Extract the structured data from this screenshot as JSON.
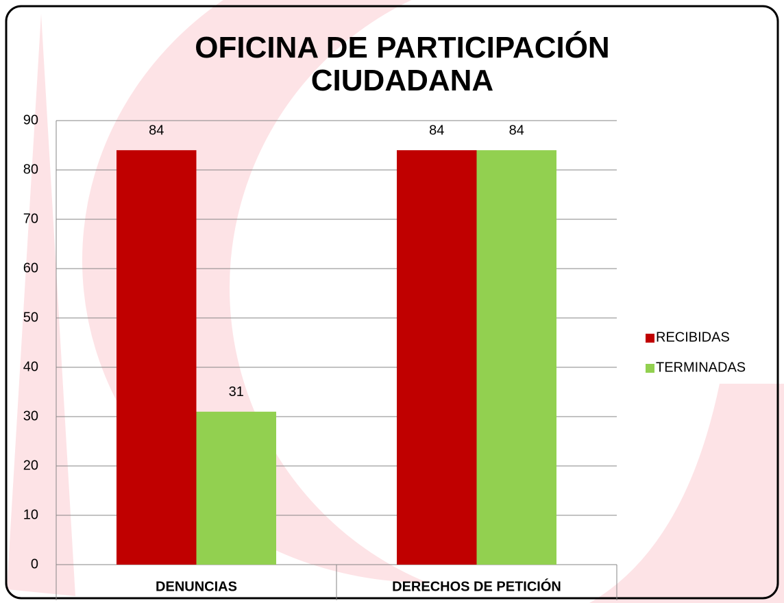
{
  "chart_data": {
    "type": "bar",
    "title": "OFICINA DE PARTICIPACIÓN CIUDADANA",
    "categories": [
      "DENUNCIAS",
      "DERECHOS DE PETICIÓN"
    ],
    "series": [
      {
        "name": "RECIBIDAS",
        "color": "#c00000",
        "values": [
          84,
          84
        ]
      },
      {
        "name": "TERMINADAS",
        "color": "#92d050",
        "values": [
          31,
          84
        ]
      }
    ],
    "ylim": [
      0,
      90
    ],
    "yticks": [
      0,
      10,
      20,
      30,
      40,
      50,
      60,
      70,
      80,
      90
    ],
    "grid": true,
    "legend": "right"
  }
}
